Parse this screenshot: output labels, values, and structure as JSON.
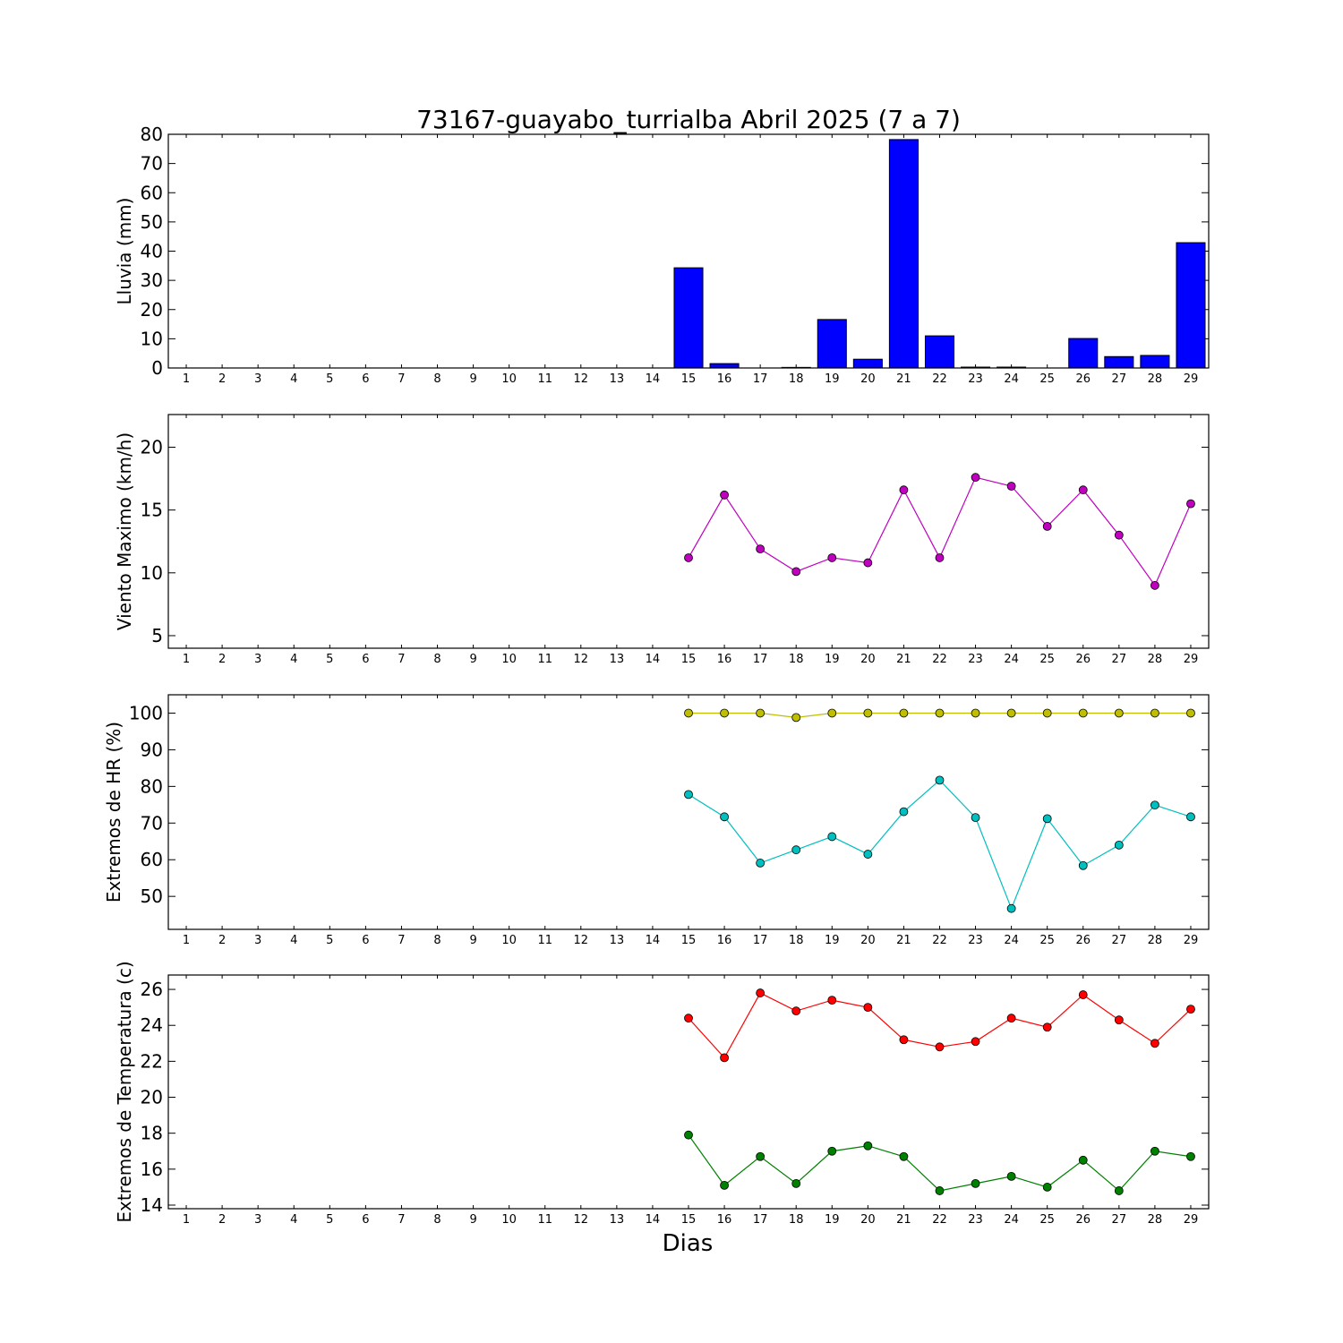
{
  "title": "73167-guayabo_turrialba Abril 2025  (7 a 7)",
  "xlabel": "Dias",
  "days": [
    1,
    2,
    3,
    4,
    5,
    6,
    7,
    8,
    9,
    10,
    11,
    12,
    13,
    14,
    15,
    16,
    17,
    18,
    19,
    20,
    21,
    22,
    23,
    24,
    25,
    26,
    27,
    28,
    29
  ],
  "chart_data": [
    {
      "type": "bar",
      "ylabel": "Lluvia (mm)",
      "ylim": [
        0,
        80
      ],
      "yticks": [
        0,
        10,
        20,
        30,
        40,
        50,
        60,
        70,
        80
      ],
      "categories": [
        1,
        2,
        3,
        4,
        5,
        6,
        7,
        8,
        9,
        10,
        11,
        12,
        13,
        14,
        15,
        16,
        17,
        18,
        19,
        20,
        21,
        22,
        23,
        24,
        25,
        26,
        27,
        28,
        29
      ],
      "series": [
        {
          "color": "#0000ff",
          "values": [
            null,
            null,
            null,
            null,
            null,
            null,
            null,
            null,
            null,
            null,
            null,
            null,
            null,
            null,
            34.3,
            1.5,
            0,
            0.2,
            16.6,
            3.0,
            78.2,
            11.0,
            0.3,
            0.3,
            0,
            10.1,
            3.9,
            4.3,
            42.9
          ]
        }
      ],
      "grid": false
    },
    {
      "type": "line",
      "ylabel": "Viento Maximo (km/h)",
      "ylim": [
        4,
        22.6
      ],
      "yticks": [
        5,
        10,
        15,
        20
      ],
      "x": [
        1,
        2,
        3,
        4,
        5,
        6,
        7,
        8,
        9,
        10,
        11,
        12,
        13,
        14,
        15,
        16,
        17,
        18,
        19,
        20,
        21,
        22,
        23,
        24,
        25,
        26,
        27,
        28,
        29
      ],
      "series": [
        {
          "color": "#bf00bf",
          "values": [
            null,
            null,
            null,
            null,
            null,
            null,
            null,
            null,
            null,
            null,
            null,
            null,
            null,
            null,
            11.2,
            16.2,
            11.9,
            10.1,
            11.2,
            10.8,
            16.6,
            11.2,
            17.6,
            16.9,
            13.7,
            16.6,
            13.0,
            9.0,
            15.5
          ]
        }
      ],
      "grid": false
    },
    {
      "type": "line",
      "ylabel": "Extremos de HR (%)",
      "ylim": [
        41,
        105
      ],
      "yticks": [
        50,
        60,
        70,
        80,
        90,
        100
      ],
      "x": [
        1,
        2,
        3,
        4,
        5,
        6,
        7,
        8,
        9,
        10,
        11,
        12,
        13,
        14,
        15,
        16,
        17,
        18,
        19,
        20,
        21,
        22,
        23,
        24,
        25,
        26,
        27,
        28,
        29
      ],
      "series": [
        {
          "color": "#bfbf00",
          "values": [
            null,
            null,
            null,
            null,
            null,
            null,
            null,
            null,
            null,
            null,
            null,
            null,
            null,
            null,
            100,
            100,
            100,
            98.8,
            100,
            100,
            100,
            100,
            100,
            100,
            100,
            100,
            100,
            100,
            100
          ]
        },
        {
          "color": "#00bfbf",
          "values": [
            null,
            null,
            null,
            null,
            null,
            null,
            null,
            null,
            null,
            null,
            null,
            null,
            null,
            null,
            77.8,
            71.7,
            59.1,
            62.7,
            66.3,
            61.5,
            73.1,
            81.7,
            71.5,
            46.7,
            71.2,
            58.4,
            64.0,
            74.9,
            71.7
          ]
        }
      ],
      "grid": false
    },
    {
      "type": "line",
      "ylabel": "Extremos de Temperatura (c)",
      "ylim": [
        13.8,
        26.8
      ],
      "yticks": [
        14,
        16,
        18,
        20,
        22,
        24,
        26
      ],
      "x": [
        1,
        2,
        3,
        4,
        5,
        6,
        7,
        8,
        9,
        10,
        11,
        12,
        13,
        14,
        15,
        16,
        17,
        18,
        19,
        20,
        21,
        22,
        23,
        24,
        25,
        26,
        27,
        28,
        29
      ],
      "series": [
        {
          "color": "#ff0000",
          "values": [
            null,
            null,
            null,
            null,
            null,
            null,
            null,
            null,
            null,
            null,
            null,
            null,
            null,
            null,
            24.4,
            22.2,
            25.8,
            24.8,
            25.4,
            25.0,
            23.2,
            22.8,
            23.1,
            24.4,
            23.9,
            25.7,
            24.3,
            23.0,
            24.9
          ]
        },
        {
          "color": "#008000",
          "values": [
            null,
            null,
            null,
            null,
            null,
            null,
            null,
            null,
            null,
            null,
            null,
            null,
            null,
            null,
            17.9,
            15.1,
            16.7,
            15.2,
            17.0,
            17.3,
            16.7,
            14.8,
            15.2,
            15.6,
            15.0,
            16.5,
            14.8,
            17.0,
            16.7
          ]
        }
      ],
      "grid": false
    }
  ]
}
